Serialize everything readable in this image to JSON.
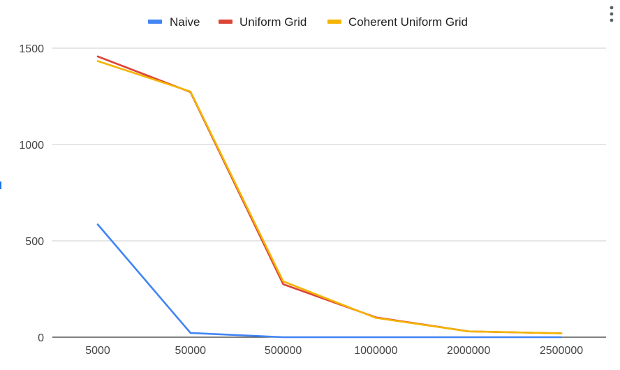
{
  "chart_data": {
    "type": "line",
    "title": "",
    "xlabel": "",
    "ylabel": "",
    "categories": [
      "5000",
      "50000",
      "500000",
      "1000000",
      "2000000",
      "2500000"
    ],
    "ylim": [
      0,
      1500
    ],
    "yticks": [
      0,
      500,
      1000,
      1500
    ],
    "grid": true,
    "legend_position": "top",
    "series": [
      {
        "name": "Naive",
        "color": "#4285f4",
        "values": [
          585,
          22,
          0,
          0,
          0,
          0
        ]
      },
      {
        "name": "Uniform Grid",
        "color": "#db4437",
        "values": [
          1457,
          1272,
          275,
          103,
          30,
          20
        ]
      },
      {
        "name": "Coherent Uniform Grid",
        "color": "#f4b400",
        "values": [
          1433,
          1275,
          290,
          100,
          30,
          20
        ]
      }
    ]
  },
  "menu": {
    "icon": "more-vert-icon"
  }
}
